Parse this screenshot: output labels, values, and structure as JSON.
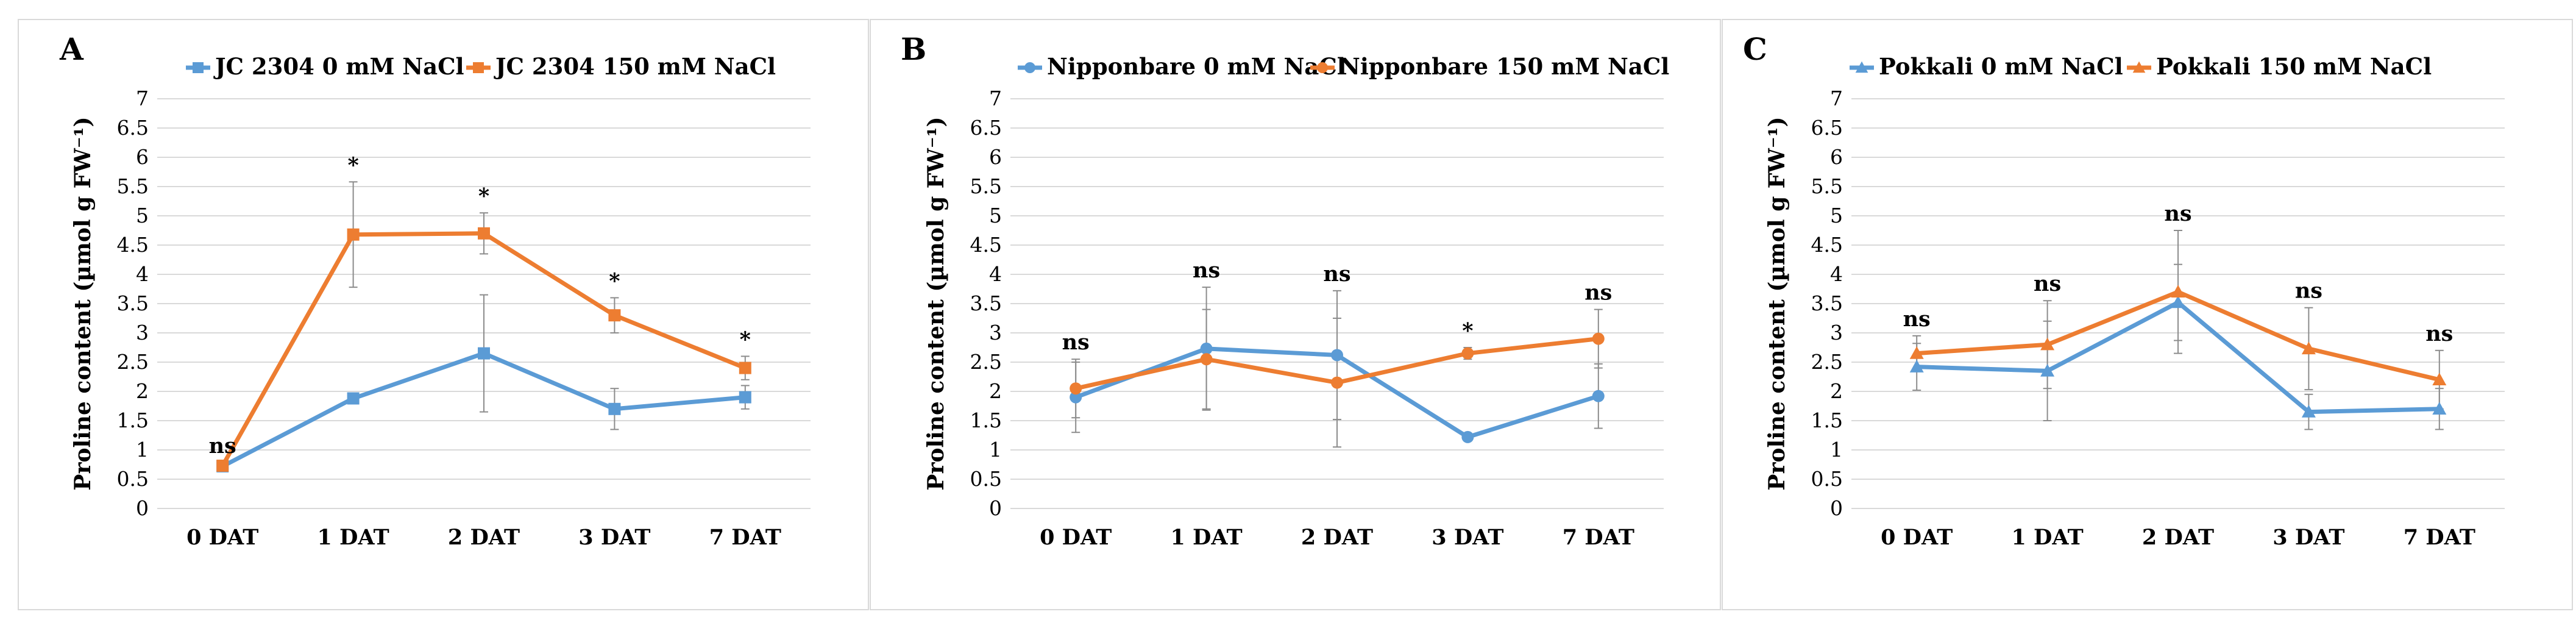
{
  "chart_data": [
    {
      "panel": "A",
      "type": "line",
      "ylabel": "Proline content (µmol g FW⁻¹)",
      "categories": [
        "0 DAT",
        "1 DAT",
        "2 DAT",
        "3 DAT",
        "7 DAT"
      ],
      "ylim": [
        0,
        7
      ],
      "yticks": [
        "0",
        "0.5",
        "1",
        "1.5",
        "2",
        "2.5",
        "3",
        "3.5",
        "4",
        "4.5",
        "5",
        "5.5",
        "6",
        "6.5",
        "7"
      ],
      "grid": true,
      "legend_position": "top",
      "marker": "square",
      "series": [
        {
          "name": "JC 2304 0 mM NaCl",
          "color": "#5b9bd5",
          "values": [
            0.72,
            1.88,
            2.65,
            1.7,
            1.9
          ],
          "errors": [
            0.05,
            0.07,
            1.0,
            0.35,
            0.2
          ]
        },
        {
          "name": "JC 2304 150 mM NaCl",
          "color": "#ed7d31",
          "values": [
            0.73,
            4.68,
            4.7,
            3.3,
            2.4
          ],
          "errors": [
            0.05,
            0.9,
            0.35,
            0.3,
            0.2
          ]
        }
      ],
      "significance": [
        "ns",
        "*",
        "*",
        "*",
        "*"
      ]
    },
    {
      "panel": "B",
      "type": "line",
      "ylabel": "Proline content (µmol g FW⁻¹)",
      "categories": [
        "0 DAT",
        "1 DAT",
        "2 DAT",
        "3 DAT",
        "7 DAT"
      ],
      "ylim": [
        0,
        7
      ],
      "yticks": [
        "0",
        "0.5",
        "1",
        "1.5",
        "2",
        "2.5",
        "3",
        "3.5",
        "4",
        "4.5",
        "5",
        "5.5",
        "6",
        "6.5",
        "7"
      ],
      "grid": true,
      "legend_position": "top",
      "marker": "circle",
      "series": [
        {
          "name": "Nipponbare 0 mM NaCl",
          "color": "#5b9bd5",
          "values": [
            1.9,
            2.73,
            2.62,
            1.22,
            1.92
          ],
          "errors": [
            0.6,
            1.05,
            1.1,
            0.05,
            0.55
          ]
        },
        {
          "name": "Nipponbare 150 mM NaCl",
          "color": "#ed7d31",
          "values": [
            2.05,
            2.55,
            2.15,
            2.65,
            2.9
          ],
          "errors": [
            0.5,
            0.85,
            1.1,
            0.1,
            0.5
          ]
        }
      ],
      "significance": [
        "ns",
        "ns",
        "ns",
        "*",
        "ns"
      ]
    },
    {
      "panel": "C",
      "type": "line",
      "ylabel": "Proline content (µmol g FW⁻¹)",
      "categories": [
        "0 DAT",
        "1 DAT",
        "2 DAT",
        "3 DAT",
        "7 DAT"
      ],
      "ylim": [
        0,
        7
      ],
      "yticks": [
        "0",
        "0.5",
        "1",
        "1.5",
        "2",
        "2.5",
        "3",
        "3.5",
        "4",
        "4.5",
        "5",
        "5.5",
        "6",
        "6.5",
        "7"
      ],
      "grid": true,
      "legend_position": "top",
      "marker": "triangle",
      "series": [
        {
          "name": "Pokkali 0 mM NaCl",
          "color": "#5b9bd5",
          "values": [
            2.42,
            2.35,
            3.52,
            1.65,
            1.7
          ],
          "errors": [
            0.4,
            0.85,
            0.65,
            0.3,
            0.35
          ]
        },
        {
          "name": "Pokkali 150 mM NaCl",
          "color": "#ed7d31",
          "values": [
            2.65,
            2.8,
            3.7,
            2.73,
            2.2
          ],
          "errors": [
            0.3,
            0.75,
            1.05,
            0.7,
            0.5
          ]
        }
      ],
      "significance": [
        "ns",
        "ns",
        "ns",
        "ns",
        "ns"
      ]
    }
  ]
}
